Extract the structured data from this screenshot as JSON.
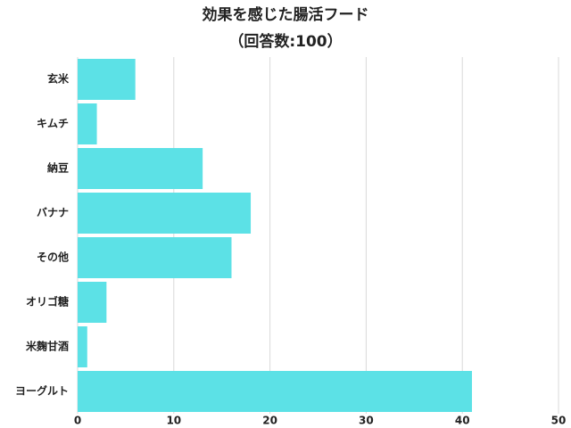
{
  "chart_data": {
    "type": "bar",
    "orientation": "horizontal",
    "title": "効果を感じた腸活フード",
    "subtitle": "（回答数:100）",
    "categories": [
      "玄米",
      "キムチ",
      "納豆",
      "バナナ",
      "その他",
      "オリゴ糖",
      "米麹甘酒",
      "ヨーグルト"
    ],
    "values": [
      6,
      2,
      13,
      18,
      16,
      3,
      1,
      41
    ],
    "color": "#5ce1e6",
    "xlim": [
      0,
      50
    ],
    "xticks": [
      0,
      10,
      20,
      30,
      40,
      50
    ],
    "grid": true
  }
}
